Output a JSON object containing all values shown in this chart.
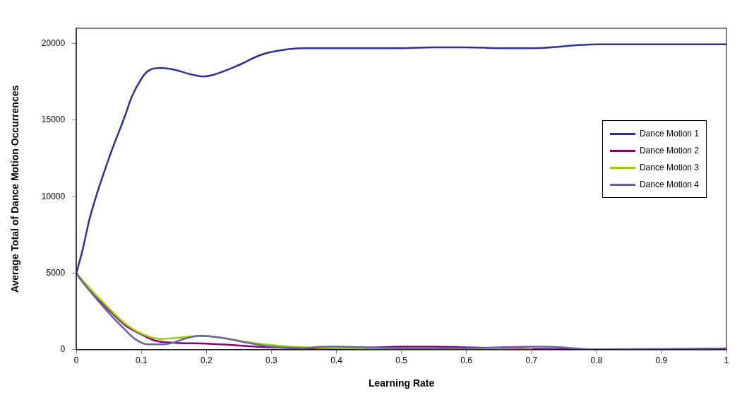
{
  "chart_data": {
    "type": "line",
    "xlabel": "Learning Rate",
    "ylabel": "Average Total of Dance Motion Occurrences",
    "xlim": [
      0,
      1
    ],
    "xticks": [
      0,
      0.1,
      0.2,
      0.3,
      0.4,
      0.5,
      0.6,
      0.7,
      0.8,
      0.9,
      1
    ],
    "ylim": [
      0,
      21000
    ],
    "yticks": [
      0,
      5000,
      10000,
      15000,
      20000
    ],
    "grid": false,
    "legend": "right",
    "marker": "none",
    "line_style": "solid",
    "series": [
      {
        "name": "Dance Motion 1",
        "color": "#2e3192",
        "x": [
          0,
          0.01,
          0.02,
          0.05,
          0.075,
          0.085,
          0.1,
          0.11,
          0.13,
          0.15,
          0.175,
          0.195,
          0.21,
          0.25,
          0.28,
          0.3,
          0.35,
          0.4,
          0.5,
          0.55,
          0.6,
          0.65,
          0.7,
          0.8,
          0.9,
          1
        ],
        "values": [
          5000,
          6600,
          8500,
          12500,
          15300,
          16500,
          17700,
          18200,
          18400,
          18300,
          18000,
          17850,
          17950,
          18600,
          19200,
          19450,
          19700,
          19700,
          19700,
          19750,
          19750,
          19700,
          19700,
          19950,
          19950,
          19950
        ]
      },
      {
        "name": "Dance Motion 2",
        "color": "#800080",
        "x": [
          0,
          0.01,
          0.05,
          0.075,
          0.1,
          0.12,
          0.15,
          0.2,
          0.3,
          0.4,
          0.5,
          0.55,
          0.6,
          0.7,
          0.8,
          0.9,
          1
        ],
        "values": [
          5000,
          4400,
          2600,
          1600,
          1000,
          600,
          450,
          400,
          150,
          50,
          200,
          200,
          150,
          50,
          20,
          30,
          80
        ]
      },
      {
        "name": "Dance Motion 3",
        "color": "#99cc00",
        "x": [
          0,
          0.01,
          0.05,
          0.075,
          0.1,
          0.13,
          0.15,
          0.19,
          0.22,
          0.27,
          0.3,
          0.35,
          0.4,
          0.5,
          0.6,
          0.7
        ],
        "values": [
          5000,
          4500,
          2700,
          1700,
          1050,
          700,
          750,
          900,
          800,
          450,
          300,
          150,
          100,
          50,
          50,
          30
        ]
      },
      {
        "name": "Dance Motion 4",
        "color": "#6666a0",
        "x": [
          0,
          0.01,
          0.05,
          0.075,
          0.09,
          0.11,
          0.135,
          0.17,
          0.19,
          0.22,
          0.27,
          0.3,
          0.35,
          0.38,
          0.4,
          0.5,
          0.6,
          0.7,
          0.72,
          0.8,
          0.9,
          1
        ],
        "values": [
          5000,
          4400,
          2400,
          1300,
          700,
          350,
          350,
          750,
          900,
          800,
          400,
          200,
          100,
          200,
          200,
          100,
          100,
          200,
          200,
          20,
          50,
          50
        ]
      }
    ]
  }
}
